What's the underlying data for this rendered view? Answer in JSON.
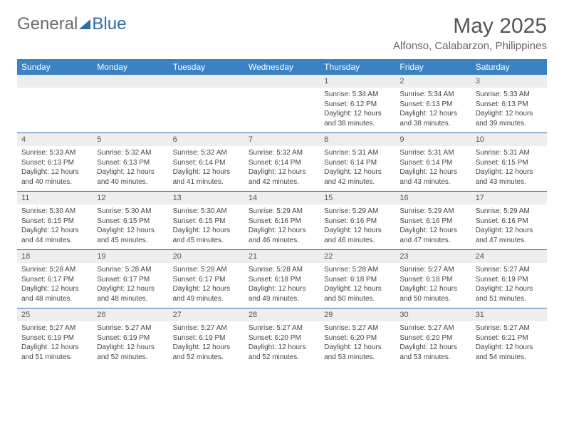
{
  "brand": {
    "part1": "General",
    "part2": "Blue"
  },
  "title": "May 2025",
  "location": "Alfonso, Calabarzon, Philippines",
  "colors": {
    "header_bg": "#3b82c4",
    "header_text": "#ffffff",
    "border": "#2d6aa8",
    "daynum_bg": "#eeeeee",
    "text": "#444444",
    "brand_gray": "#6b6b6b",
    "brand_blue": "#2d6aa8"
  },
  "weekdays": [
    "Sunday",
    "Monday",
    "Tuesday",
    "Wednesday",
    "Thursday",
    "Friday",
    "Saturday"
  ],
  "days": [
    {
      "n": "",
      "sunrise": "",
      "sunset": "",
      "daylight": ""
    },
    {
      "n": "",
      "sunrise": "",
      "sunset": "",
      "daylight": ""
    },
    {
      "n": "",
      "sunrise": "",
      "sunset": "",
      "daylight": ""
    },
    {
      "n": "",
      "sunrise": "",
      "sunset": "",
      "daylight": ""
    },
    {
      "n": "1",
      "sunrise": "Sunrise: 5:34 AM",
      "sunset": "Sunset: 6:12 PM",
      "daylight": "Daylight: 12 hours and 38 minutes."
    },
    {
      "n": "2",
      "sunrise": "Sunrise: 5:34 AM",
      "sunset": "Sunset: 6:13 PM",
      "daylight": "Daylight: 12 hours and 38 minutes."
    },
    {
      "n": "3",
      "sunrise": "Sunrise: 5:33 AM",
      "sunset": "Sunset: 6:13 PM",
      "daylight": "Daylight: 12 hours and 39 minutes."
    },
    {
      "n": "4",
      "sunrise": "Sunrise: 5:33 AM",
      "sunset": "Sunset: 6:13 PM",
      "daylight": "Daylight: 12 hours and 40 minutes."
    },
    {
      "n": "5",
      "sunrise": "Sunrise: 5:32 AM",
      "sunset": "Sunset: 6:13 PM",
      "daylight": "Daylight: 12 hours and 40 minutes."
    },
    {
      "n": "6",
      "sunrise": "Sunrise: 5:32 AM",
      "sunset": "Sunset: 6:14 PM",
      "daylight": "Daylight: 12 hours and 41 minutes."
    },
    {
      "n": "7",
      "sunrise": "Sunrise: 5:32 AM",
      "sunset": "Sunset: 6:14 PM",
      "daylight": "Daylight: 12 hours and 42 minutes."
    },
    {
      "n": "8",
      "sunrise": "Sunrise: 5:31 AM",
      "sunset": "Sunset: 6:14 PM",
      "daylight": "Daylight: 12 hours and 42 minutes."
    },
    {
      "n": "9",
      "sunrise": "Sunrise: 5:31 AM",
      "sunset": "Sunset: 6:14 PM",
      "daylight": "Daylight: 12 hours and 43 minutes."
    },
    {
      "n": "10",
      "sunrise": "Sunrise: 5:31 AM",
      "sunset": "Sunset: 6:15 PM",
      "daylight": "Daylight: 12 hours and 43 minutes."
    },
    {
      "n": "11",
      "sunrise": "Sunrise: 5:30 AM",
      "sunset": "Sunset: 6:15 PM",
      "daylight": "Daylight: 12 hours and 44 minutes."
    },
    {
      "n": "12",
      "sunrise": "Sunrise: 5:30 AM",
      "sunset": "Sunset: 6:15 PM",
      "daylight": "Daylight: 12 hours and 45 minutes."
    },
    {
      "n": "13",
      "sunrise": "Sunrise: 5:30 AM",
      "sunset": "Sunset: 6:15 PM",
      "daylight": "Daylight: 12 hours and 45 minutes."
    },
    {
      "n": "14",
      "sunrise": "Sunrise: 5:29 AM",
      "sunset": "Sunset: 6:16 PM",
      "daylight": "Daylight: 12 hours and 46 minutes."
    },
    {
      "n": "15",
      "sunrise": "Sunrise: 5:29 AM",
      "sunset": "Sunset: 6:16 PM",
      "daylight": "Daylight: 12 hours and 46 minutes."
    },
    {
      "n": "16",
      "sunrise": "Sunrise: 5:29 AM",
      "sunset": "Sunset: 6:16 PM",
      "daylight": "Daylight: 12 hours and 47 minutes."
    },
    {
      "n": "17",
      "sunrise": "Sunrise: 5:29 AM",
      "sunset": "Sunset: 6:16 PM",
      "daylight": "Daylight: 12 hours and 47 minutes."
    },
    {
      "n": "18",
      "sunrise": "Sunrise: 5:28 AM",
      "sunset": "Sunset: 6:17 PM",
      "daylight": "Daylight: 12 hours and 48 minutes."
    },
    {
      "n": "19",
      "sunrise": "Sunrise: 5:28 AM",
      "sunset": "Sunset: 6:17 PM",
      "daylight": "Daylight: 12 hours and 48 minutes."
    },
    {
      "n": "20",
      "sunrise": "Sunrise: 5:28 AM",
      "sunset": "Sunset: 6:17 PM",
      "daylight": "Daylight: 12 hours and 49 minutes."
    },
    {
      "n": "21",
      "sunrise": "Sunrise: 5:28 AM",
      "sunset": "Sunset: 6:18 PM",
      "daylight": "Daylight: 12 hours and 49 minutes."
    },
    {
      "n": "22",
      "sunrise": "Sunrise: 5:28 AM",
      "sunset": "Sunset: 6:18 PM",
      "daylight": "Daylight: 12 hours and 50 minutes."
    },
    {
      "n": "23",
      "sunrise": "Sunrise: 5:27 AM",
      "sunset": "Sunset: 6:18 PM",
      "daylight": "Daylight: 12 hours and 50 minutes."
    },
    {
      "n": "24",
      "sunrise": "Sunrise: 5:27 AM",
      "sunset": "Sunset: 6:19 PM",
      "daylight": "Daylight: 12 hours and 51 minutes."
    },
    {
      "n": "25",
      "sunrise": "Sunrise: 5:27 AM",
      "sunset": "Sunset: 6:19 PM",
      "daylight": "Daylight: 12 hours and 51 minutes."
    },
    {
      "n": "26",
      "sunrise": "Sunrise: 5:27 AM",
      "sunset": "Sunset: 6:19 PM",
      "daylight": "Daylight: 12 hours and 52 minutes."
    },
    {
      "n": "27",
      "sunrise": "Sunrise: 5:27 AM",
      "sunset": "Sunset: 6:19 PM",
      "daylight": "Daylight: 12 hours and 52 minutes."
    },
    {
      "n": "28",
      "sunrise": "Sunrise: 5:27 AM",
      "sunset": "Sunset: 6:20 PM",
      "daylight": "Daylight: 12 hours and 52 minutes."
    },
    {
      "n": "29",
      "sunrise": "Sunrise: 5:27 AM",
      "sunset": "Sunset: 6:20 PM",
      "daylight": "Daylight: 12 hours and 53 minutes."
    },
    {
      "n": "30",
      "sunrise": "Sunrise: 5:27 AM",
      "sunset": "Sunset: 6:20 PM",
      "daylight": "Daylight: 12 hours and 53 minutes."
    },
    {
      "n": "31",
      "sunrise": "Sunrise: 5:27 AM",
      "sunset": "Sunset: 6:21 PM",
      "daylight": "Daylight: 12 hours and 54 minutes."
    }
  ]
}
